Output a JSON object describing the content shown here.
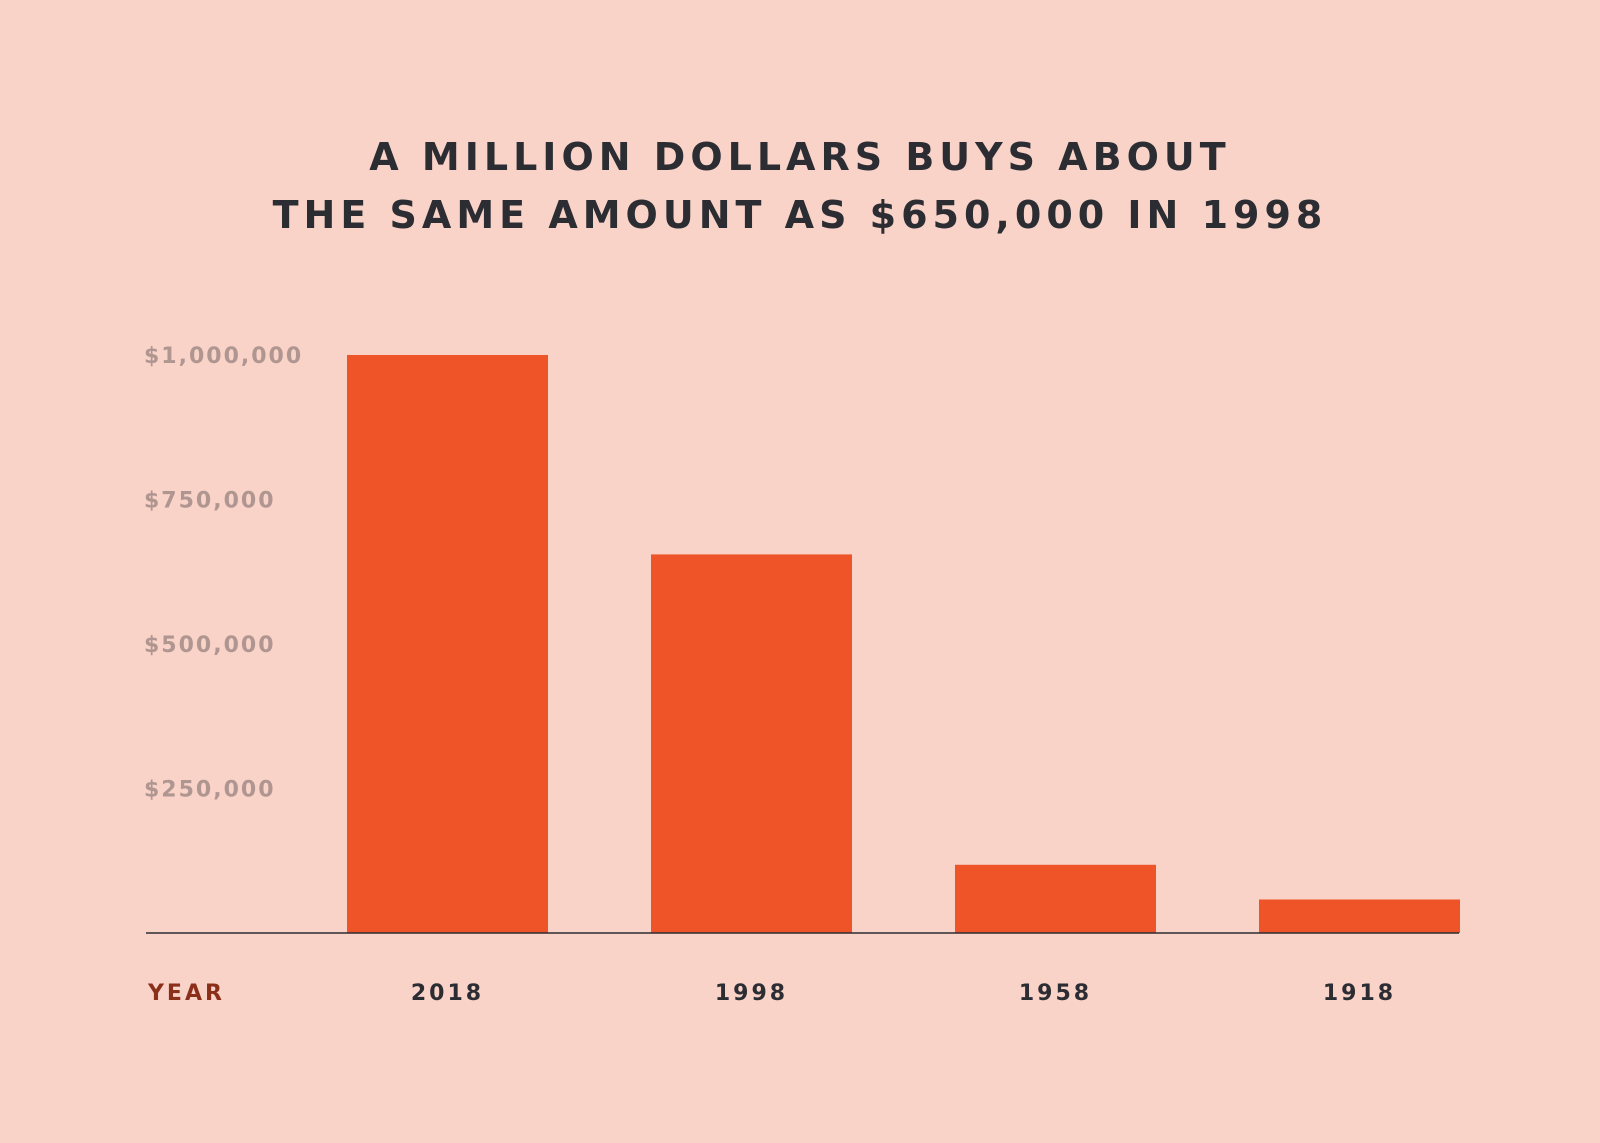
{
  "chart_data": {
    "type": "bar",
    "title_lines": [
      "A MILLION DOLLARS BUYS ABOUT",
      "THE SAME AMOUNT AS $650,000 IN 1998"
    ],
    "xlabel": "YEAR",
    "ylabel": "",
    "categories": [
      "2018",
      "1998",
      "1958",
      "1918"
    ],
    "values": [
      1000000,
      655000,
      118000,
      58000
    ],
    "ylim": [
      0,
      1000000
    ],
    "yticks": [
      {
        "value": 1000000,
        "label": "$1,000,000"
      },
      {
        "value": 750000,
        "label": "$750,000"
      },
      {
        "value": 500000,
        "label": "$500,000"
      },
      {
        "value": 250000,
        "label": "$250,000"
      }
    ],
    "grid": false,
    "legend": "none",
    "colors": {
      "bar": "#ef5428",
      "background": "#f9d2c8",
      "baseline": "#2b2d33"
    }
  }
}
